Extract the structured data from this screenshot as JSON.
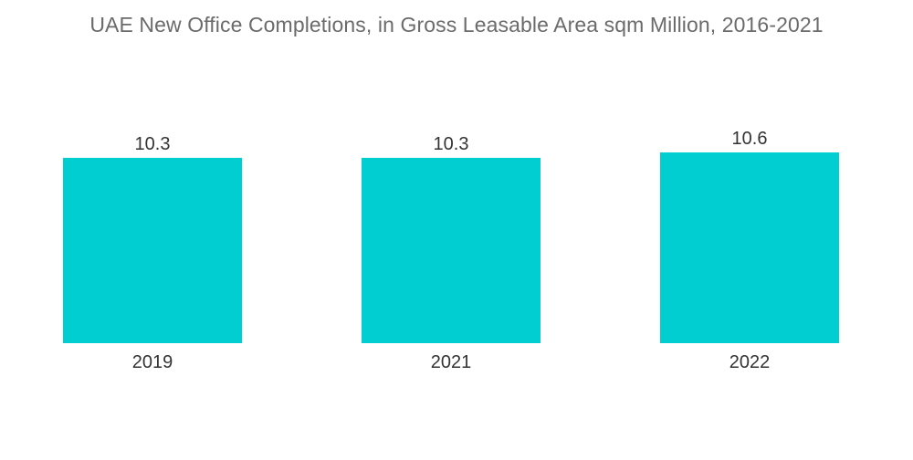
{
  "chart_data": {
    "type": "bar",
    "title": "UAE New Office Completions, in Gross Leasable Area sqm Million, 2016-2021",
    "categories": [
      "2019",
      "2021",
      "2022"
    ],
    "values": [
      10.3,
      10.3,
      10.6
    ],
    "value_labels": [
      "10.3",
      "10.3",
      "10.6"
    ],
    "xlabel": "",
    "ylabel": "",
    "ylim": [
      0,
      10.6
    ],
    "grid": false,
    "legend": "none",
    "bar_color": "#00ced1"
  }
}
